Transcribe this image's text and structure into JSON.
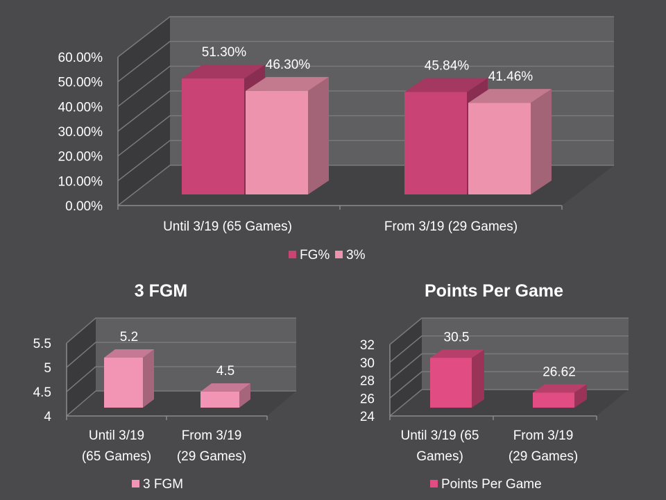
{
  "colors": {
    "background": "#4a4a4c",
    "fg_pct": "#c94475",
    "three_pct": "#ee93ad",
    "three_fgm": "#f294b4",
    "ppg": "#e14d82"
  },
  "chart_data": [
    {
      "type": "bar",
      "title": "",
      "categories": [
        "Until 3/19 (65 Games)",
        "From 3/19 (29 Games)"
      ],
      "series": [
        {
          "name": "FG%",
          "values": [
            51.3,
            45.84
          ],
          "labels": [
            "51.30%",
            "45.84%"
          ]
        },
        {
          "name": "3%",
          "values": [
            46.3,
            41.46
          ],
          "labels": [
            "46.30%",
            "41.46%"
          ]
        }
      ],
      "yticks": [
        "0.00%",
        "10.00%",
        "20.00%",
        "30.00%",
        "40.00%",
        "50.00%",
        "60.00%"
      ],
      "ylim": [
        0,
        60
      ],
      "grid": true,
      "legend": "bottom",
      "style": "3d-clustered"
    },
    {
      "type": "bar",
      "title": "3 FGM",
      "categories": [
        [
          "Until 3/19",
          "(65 Games)"
        ],
        [
          "From 3/19",
          "(29 Games)"
        ]
      ],
      "series": [
        {
          "name": "3 FGM",
          "values": [
            5.2,
            4.5
          ],
          "labels": [
            "5.2",
            "4.5"
          ]
        }
      ],
      "yticks": [
        "4",
        "4.5",
        "5",
        "5.5"
      ],
      "ylim": [
        4,
        5.5
      ],
      "grid": true,
      "legend": "bottom",
      "style": "3d-column"
    },
    {
      "type": "bar",
      "title": "Points Per Game",
      "categories": [
        [
          "Until 3/19 (65",
          "Games)"
        ],
        [
          "From 3/19",
          "(29 Games)"
        ]
      ],
      "series": [
        {
          "name": "Points Per Game",
          "values": [
            30.5,
            26.62
          ],
          "labels": [
            "30.5",
            "26.62"
          ]
        }
      ],
      "yticks": [
        "24",
        "26",
        "28",
        "30",
        "32"
      ],
      "ylim": [
        24,
        32
      ],
      "grid": true,
      "legend": "bottom",
      "style": "3d-column"
    }
  ]
}
